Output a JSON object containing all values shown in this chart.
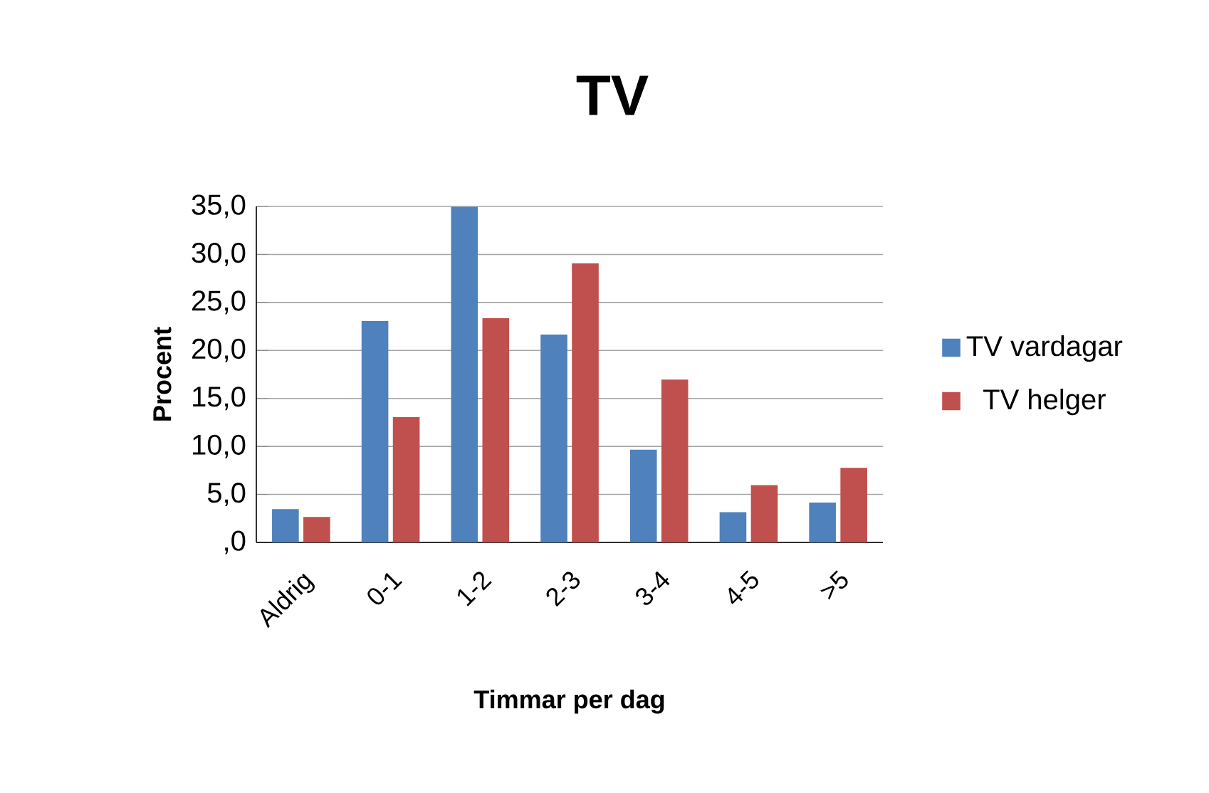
{
  "chart_data": {
    "type": "bar",
    "title": "TV",
    "xlabel": "Timmar per dag",
    "ylabel": "Procent",
    "categories": [
      "Aldrig",
      "0-1",
      "1-2",
      "2-3",
      "3-4",
      "4-5",
      ">5"
    ],
    "series": [
      {
        "name": "TV vardagar",
        "color": "#4f81bd",
        "values": [
          3.4,
          23.0,
          34.9,
          21.6,
          9.6,
          3.1,
          4.1
        ]
      },
      {
        "name": "TV helger",
        "color": "#c0504d",
        "values": [
          2.6,
          13.0,
          23.3,
          29.0,
          16.9,
          5.9,
          7.7
        ]
      }
    ],
    "ylim": [
      0,
      35
    ],
    "yticks": [
      {
        "value": 0,
        "label": ",0"
      },
      {
        "value": 5,
        "label": "5,0"
      },
      {
        "value": 10,
        "label": "10,0"
      },
      {
        "value": 15,
        "label": "15,0"
      },
      {
        "value": 20,
        "label": "20,0"
      },
      {
        "value": 25,
        "label": "25,0"
      },
      {
        "value": 30,
        "label": "30,0"
      },
      {
        "value": 35,
        "label": "35,0"
      }
    ],
    "grid": "y",
    "legend": "right"
  }
}
